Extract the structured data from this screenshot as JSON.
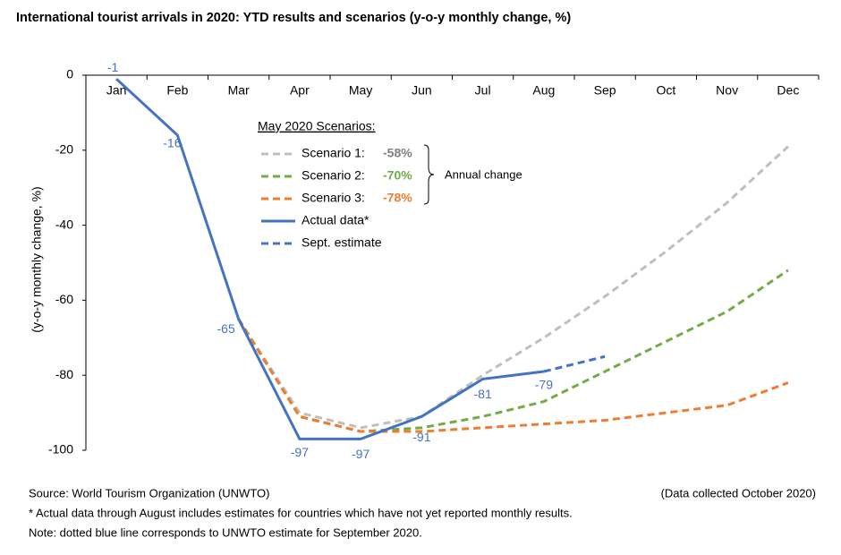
{
  "chart_data": {
    "type": "line",
    "title": "International tourist arrivals in 2020: YTD results and scenarios (y-o-y monthly change, %)",
    "y_label": "(y-o-y monthly change, %)",
    "categories": [
      "Jan",
      "Feb",
      "Mar",
      "Apr",
      "May",
      "Jun",
      "Jul",
      "Aug",
      "Sep",
      "Oct",
      "Nov",
      "Dec"
    ],
    "ylim": [
      -100,
      0
    ],
    "yticks": [
      0,
      -20,
      -40,
      -60,
      -80,
      -100
    ],
    "legend_title": "May 2020 Scenarios:",
    "annual_change_label": "Annual change",
    "series": [
      {
        "name": "Scenario 1:",
        "color": "#bfbfbf",
        "dash": true,
        "annual_change": {
          "value": -58,
          "label": "-58%"
        },
        "label_color": "#808080",
        "values": [
          null,
          null,
          -65,
          -90,
          -94,
          -91,
          -80,
          -70,
          -59,
          -47,
          -34,
          -19
        ]
      },
      {
        "name": "Scenario 2:",
        "color": "#70ad47",
        "dash": true,
        "annual_change": {
          "value": -70,
          "label": "-70%"
        },
        "label_color": "#70ad47",
        "values": [
          null,
          null,
          -65,
          -91,
          -95,
          -94,
          -91,
          -87,
          -79,
          -71,
          -63,
          -52
        ]
      },
      {
        "name": "Scenario 3:",
        "color": "#ed7d31",
        "dash": true,
        "annual_change": {
          "value": -78,
          "label": "-78%"
        },
        "label_color": "#ed7d31",
        "values": [
          null,
          null,
          -65,
          -91,
          -95,
          -95,
          -94,
          -93,
          -92,
          -90,
          -88,
          -82
        ]
      },
      {
        "name": "Actual data*",
        "color": "#4472c4",
        "dash": false,
        "show_labels": true,
        "values": [
          -1,
          -16,
          -65,
          -97,
          -97,
          -91,
          -81,
          -79,
          null,
          null,
          null,
          null
        ]
      },
      {
        "name": "Sept. estimate",
        "color": "#4472c4",
        "dash": true,
        "values": [
          null,
          null,
          null,
          null,
          null,
          null,
          null,
          -79,
          -75,
          null,
          null,
          null
        ]
      }
    ],
    "source": "Source: World Tourism Organization (UNWTO)",
    "date_note": "(Data collected October 2020)",
    "footnote_1": "* Actual data through August includes estimates for countries which have not yet reported monthly results.",
    "footnote_2": "Note: dotted blue line corresponds to UNWTO estimate for September 2020."
  }
}
